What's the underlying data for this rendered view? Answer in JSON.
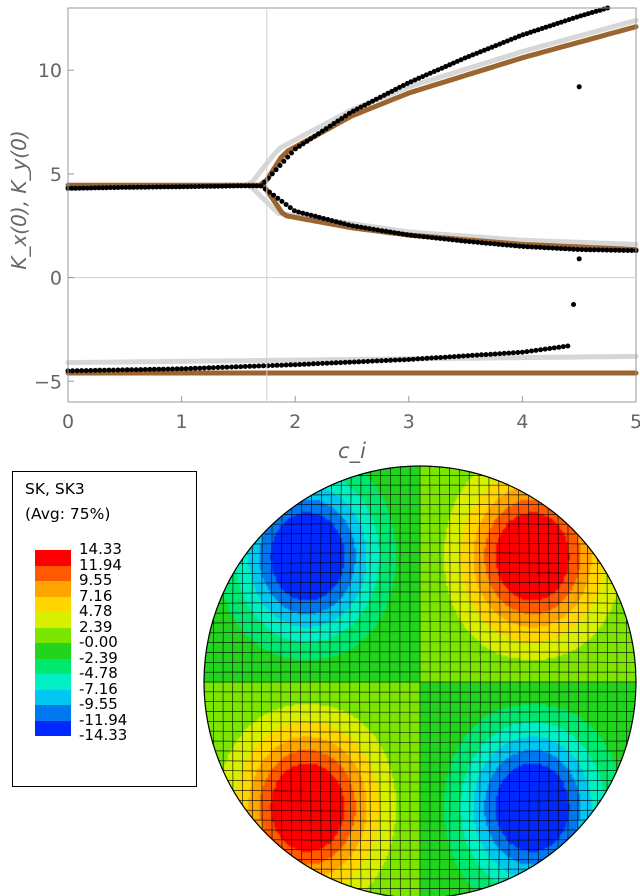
{
  "chart_data": [
    {
      "type": "scatter",
      "title": "",
      "xlabel": "c_i",
      "ylabel": "K_x(0), K_y(0)",
      "xlim": [
        0,
        5
      ],
      "ylim": [
        -6,
        13
      ],
      "grid": false,
      "reference_lines": {
        "x": 1.75,
        "y": 0
      },
      "x_ticks": [
        0,
        1,
        2,
        3,
        4,
        5
      ],
      "y_ticks": [
        -5,
        0,
        5,
        10
      ],
      "series": [
        {
          "style": "dots",
          "color": "#000000",
          "description_points": [
            {
              "x": 0.0,
              "y": 4.3
            },
            {
              "x": 0.5,
              "y": 4.35
            },
            {
              "x": 1.0,
              "y": 4.38
            },
            {
              "x": 1.5,
              "y": 4.42
            },
            {
              "x": 1.7,
              "y": 4.42
            },
            {
              "x": 2.0,
              "y": 6.2
            },
            {
              "x": 2.5,
              "y": 8.0
            },
            {
              "x": 3.0,
              "y": 9.4
            },
            {
              "x": 3.5,
              "y": 10.6
            },
            {
              "x": 4.0,
              "y": 11.7
            },
            {
              "x": 4.5,
              "y": 12.6
            },
            {
              "x": 4.75,
              "y": 13.0
            },
            {
              "x": 2.0,
              "y": 3.2
            },
            {
              "x": 2.5,
              "y": 2.5
            },
            {
              "x": 3.0,
              "y": 2.05
            },
            {
              "x": 3.5,
              "y": 1.75
            },
            {
              "x": 4.0,
              "y": 1.5
            },
            {
              "x": 4.5,
              "y": 1.35
            },
            {
              "x": 5.0,
              "y": 1.3
            },
            {
              "x": 0.0,
              "y": -4.5
            },
            {
              "x": 1.0,
              "y": -4.4
            },
            {
              "x": 2.0,
              "y": -4.2
            },
            {
              "x": 3.0,
              "y": -3.95
            },
            {
              "x": 4.0,
              "y": -3.6
            },
            {
              "x": 4.4,
              "y": -3.3
            },
            {
              "x": 4.5,
              "y": 9.2
            },
            {
              "x": 4.5,
              "y": 0.9
            },
            {
              "x": 4.45,
              "y": -1.3
            }
          ]
        },
        {
          "style": "line",
          "color": "#9b6430",
          "upper": [
            [
              0,
              4.45
            ],
            [
              1.72,
              4.45
            ],
            [
              1.9,
              6.0
            ],
            [
              2.5,
              7.8
            ],
            [
              3.0,
              8.9
            ],
            [
              4.0,
              10.6
            ],
            [
              5.0,
              12.1
            ]
          ],
          "lower": [
            [
              1.72,
              4.45
            ],
            [
              1.9,
              3.0
            ],
            [
              2.5,
              2.4
            ],
            [
              3.0,
              2.05
            ],
            [
              4.0,
              1.6
            ],
            [
              5.0,
              1.35
            ]
          ],
          "bottom": [
            [
              0,
              -4.6
            ],
            [
              5,
              -4.6
            ]
          ]
        },
        {
          "style": "line",
          "color": "#d7d7d7",
          "upper": [
            [
              0,
              4.45
            ],
            [
              1.6,
              4.45
            ],
            [
              1.85,
              6.2
            ],
            [
              2.5,
              8.1
            ],
            [
              3.0,
              9.2
            ],
            [
              4.0,
              10.9
            ],
            [
              5.0,
              12.4
            ]
          ],
          "lower": [
            [
              1.6,
              4.45
            ],
            [
              1.85,
              3.1
            ],
            [
              2.5,
              2.6
            ],
            [
              3.0,
              2.2
            ],
            [
              4.0,
              1.8
            ],
            [
              5.0,
              1.6
            ]
          ],
          "bottom": [
            [
              0,
              -4.1
            ],
            [
              5,
              -3.8
            ]
          ]
        }
      ]
    },
    {
      "type": "heatmap",
      "title": "SK, SK3",
      "subtitle": "(Avg: 75%)",
      "legend_placement": "left",
      "legend": [
        {
          "label": "14.33",
          "color": "#ff0000"
        },
        {
          "label": "11.94",
          "color": "#ff5a00"
        },
        {
          "label": "9.55",
          "color": "#ffa500"
        },
        {
          "label": "7.16",
          "color": "#ffd600"
        },
        {
          "label": "4.78",
          "color": "#d8f000"
        },
        {
          "label": "2.39",
          "color": "#7ce600"
        },
        {
          "label": "-0.00",
          "color": "#22d41e"
        },
        {
          "label": "-2.39",
          "color": "#00e870"
        },
        {
          "label": "-4.78",
          "color": "#00f0c4"
        },
        {
          "label": "-7.16",
          "color": "#00c8f0"
        },
        {
          "label": "-9.55",
          "color": "#0078f0"
        },
        {
          "label": "-11.94",
          "color": "#0028ff"
        },
        {
          "label": "-14.33",
          "color": ""
        }
      ],
      "field": {
        "lobes": [
          {
            "position": "upper-left",
            "value": -14.33
          },
          {
            "position": "upper-right",
            "value": 14.33
          },
          {
            "position": "lower-left",
            "value": 14.33
          },
          {
            "position": "lower-right",
            "value": -14.33
          }
        ]
      }
    }
  ]
}
